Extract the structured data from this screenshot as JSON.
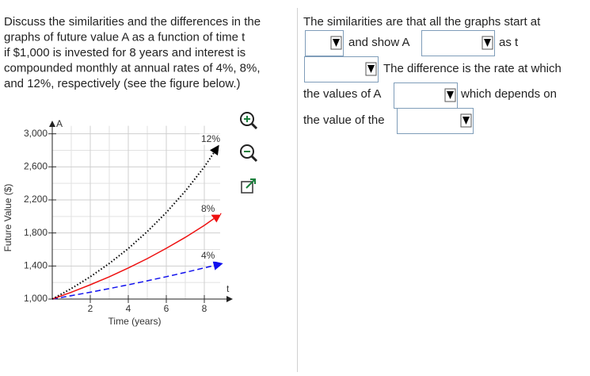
{
  "question": {
    "lines": [
      "Discuss the similarities and the differences in the",
      "graphs of future value A as a function of time t",
      "if $1,000 is invested for 8 years and interest is",
      "compounded monthly at annual rates of 4%, 8%,",
      "and 12%, respectively (see the figure below.)"
    ]
  },
  "answer": {
    "parts": [
      "The similarities are that all the graphs start at",
      "and show A",
      "as t",
      "The difference is the rate at which",
      "the values of A",
      "which depends on",
      "the value of the"
    ]
  },
  "chart_data": {
    "type": "line",
    "xlabel": "Time (years)",
    "ylabel": "Future Value ($)",
    "x_axis_letter": "t",
    "y_axis_letter": "A",
    "x": [
      0,
      1,
      2,
      3,
      4,
      5,
      6,
      7,
      8,
      8.5
    ],
    "series": [
      {
        "name": "4%",
        "color": "#1010ee",
        "style": "dashed",
        "values": [
          1000,
          1041,
          1083,
          1127,
          1173,
          1221,
          1271,
          1323,
          1377,
          1405
        ]
      },
      {
        "name": "8%",
        "color": "#ee1111",
        "style": "solid",
        "values": [
          1000,
          1083,
          1173,
          1270,
          1376,
          1490,
          1614,
          1747,
          1892,
          1973
        ]
      },
      {
        "name": "12%",
        "color": "#000000",
        "style": "dotted",
        "values": [
          1000,
          1127,
          1270,
          1431,
          1612,
          1817,
          2047,
          2307,
          2599,
          2770
        ]
      }
    ],
    "xlim": [
      0,
      9.5
    ],
    "ylim": [
      1000,
      3160
    ],
    "xticks": [
      2,
      4,
      6,
      8
    ],
    "yticks": [
      {
        "value": 1000,
        "label": "1,000"
      },
      {
        "value": 1400,
        "label": "1,400"
      },
      {
        "value": 1800,
        "label": "1,800"
      },
      {
        "value": 2200,
        "label": "2,200"
      },
      {
        "value": 2600,
        "label": "2,600"
      },
      {
        "value": 3000,
        "label": "3,000"
      }
    ],
    "grid": true
  }
}
